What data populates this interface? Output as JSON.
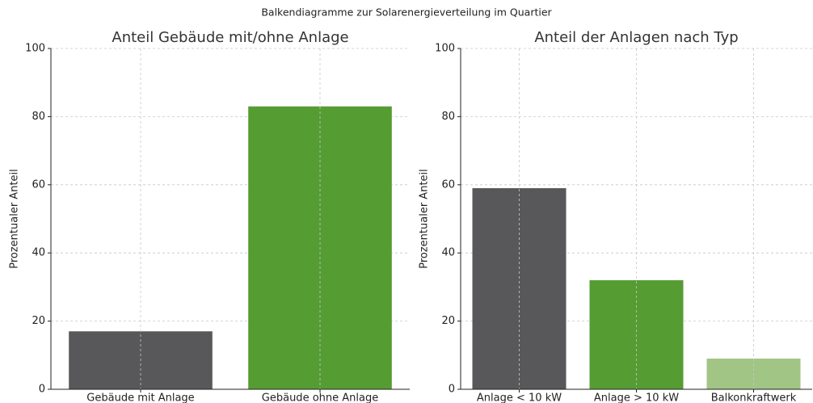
{
  "title": "Balkendiagramme zur Solarenergieverteilung im Quartier",
  "chart_data": [
    {
      "type": "bar",
      "title": "Anteil Gebäude mit/ohne Anlage",
      "ylabel": "Prozentualer Anteil",
      "categories": [
        "Gebäude mit Anlage",
        "Gebäude ohne Anlage"
      ],
      "values": [
        17,
        83
      ],
      "colors": [
        "#58585a",
        "#559c33"
      ],
      "ylim": [
        0,
        100
      ],
      "yticks": [
        0,
        20,
        40,
        60,
        80,
        100
      ],
      "grid": true
    },
    {
      "type": "bar",
      "title": "Anteil der Anlagen nach Typ",
      "ylabel": "Prozentualer Anteil",
      "categories": [
        "Anlage < 10 kW",
        "Anlage > 10 kW",
        "Balkonkraftwerk"
      ],
      "values": [
        59,
        32,
        9
      ],
      "colors": [
        "#58585a",
        "#559c33",
        "#a1c585"
      ],
      "ylim": [
        0,
        100
      ],
      "yticks": [
        0,
        20,
        40,
        60,
        80,
        100
      ],
      "grid": true
    }
  ]
}
